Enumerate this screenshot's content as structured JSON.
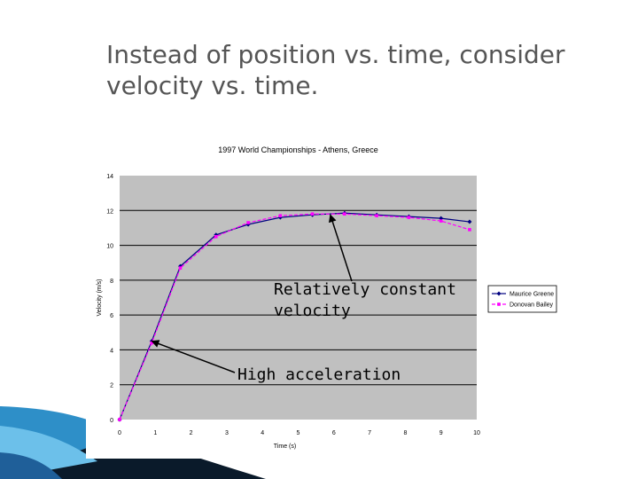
{
  "slide": {
    "title_line1": "Instead of position vs. time, consider",
    "title_line2": "velocity vs. time."
  },
  "colors": {
    "plot_bg": "#c0c0c0",
    "gridline": "#000000",
    "series1": "#000080",
    "series2": "#ff00ff",
    "title_text": "#555555",
    "deco_blue": "#2e8fc8",
    "deco_dark": "#0a1a2a"
  },
  "annotations": [
    {
      "text_lines": [
        "Relatively constant",
        "velocity"
      ],
      "target": {
        "x": 5.9,
        "y": 11.75
      }
    },
    {
      "text_lines": [
        "High acceleration"
      ],
      "target": {
        "x": 0.9,
        "y": 4.5
      }
    }
  ],
  "chart_data": {
    "type": "line",
    "title": "1997 World Championships - Athens, Greece",
    "xlabel": "Time (s)",
    "ylabel": "Velocity (m/s)",
    "xlim": [
      0,
      10
    ],
    "ylim": [
      0,
      14
    ],
    "xticks": [
      "0",
      "1",
      "2",
      "3",
      "4",
      "5",
      "6",
      "7",
      "8",
      "9",
      "10"
    ],
    "yticks": [
      "0",
      "2",
      "4",
      "6",
      "8",
      "10",
      "12",
      "14"
    ],
    "grid": "horizontal",
    "legend_position": "right",
    "series": [
      {
        "name": "Maurice Greene",
        "x": [
          0,
          0.9,
          1.7,
          2.7,
          3.6,
          4.5,
          5.4,
          6.3,
          7.2,
          8.1,
          9.0,
          9.8
        ],
        "y": [
          0,
          4.5,
          8.8,
          10.6,
          11.2,
          11.6,
          11.75,
          11.85,
          11.75,
          11.65,
          11.55,
          11.35
        ]
      },
      {
        "name": "Donovan Bailey",
        "x": [
          0,
          0.9,
          1.7,
          2.7,
          3.6,
          4.5,
          5.4,
          6.3,
          7.2,
          8.1,
          9.0,
          9.8
        ],
        "y": [
          0,
          4.4,
          8.7,
          10.5,
          11.3,
          11.7,
          11.8,
          11.8,
          11.7,
          11.6,
          11.4,
          10.9
        ]
      }
    ]
  }
}
